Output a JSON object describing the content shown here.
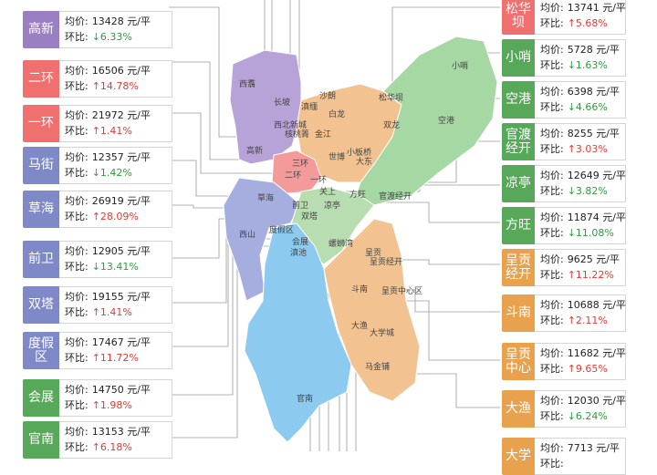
{
  "unit": "元/平",
  "price_label": "均价:",
  "change_label": "环比:",
  "colors": {
    "purple": "#9a80c2",
    "red": "#f07070",
    "blue_purple": "#7f89c8",
    "green": "#58a85a",
    "orange": "#e8a24e",
    "up": "#e53935",
    "down": "#2e9b3f"
  },
  "left_cards": [
    {
      "name": "高新",
      "price": "13428",
      "change": "6.33%",
      "dir": "down",
      "color": "purple"
    },
    {
      "name": "二环",
      "price": "16506",
      "change": "14.78%",
      "dir": "up",
      "color": "red"
    },
    {
      "name": "一环",
      "price": "21972",
      "change": "1.41%",
      "dir": "up",
      "color": "red"
    },
    {
      "name": "马街",
      "price": "12357",
      "change": "1.42%",
      "dir": "down",
      "color": "blue_purple"
    },
    {
      "name": "草海",
      "price": "26919",
      "change": "28.09%",
      "dir": "up",
      "color": "blue_purple"
    },
    {
      "name": "前卫",
      "price": "12905",
      "change": "13.41%",
      "dir": "down",
      "color": "blue_purple"
    },
    {
      "name": "双塔",
      "price": "19155",
      "change": "1.41%",
      "dir": "up",
      "color": "blue_purple"
    },
    {
      "name": "度假区",
      "price": "17467",
      "change": "11.72%",
      "dir": "up",
      "color": "blue_purple"
    },
    {
      "name": "会展",
      "price": "14750",
      "change": "1.98%",
      "dir": "up",
      "color": "green"
    },
    {
      "name": "官南",
      "price": "13153",
      "change": "6.18%",
      "dir": "up",
      "color": "green"
    }
  ],
  "right_cards": [
    {
      "name": "松华坝",
      "price": "13741",
      "change": "5.68%",
      "dir": "up",
      "color": "red"
    },
    {
      "name": "小哨",
      "price": "5728",
      "change": "1.63%",
      "dir": "down",
      "color": "green"
    },
    {
      "name": "空港",
      "price": "6398",
      "change": "4.66%",
      "dir": "down",
      "color": "green"
    },
    {
      "name": "官渡经开",
      "price": "8255",
      "change": "3.03%",
      "dir": "up",
      "color": "green"
    },
    {
      "name": "凉亭",
      "price": "12649",
      "change": "3.82%",
      "dir": "down",
      "color": "green"
    },
    {
      "name": "方旺",
      "price": "11874",
      "change": "11.08%",
      "dir": "down",
      "color": "green"
    },
    {
      "name": "呈贡经开",
      "price": "9625",
      "change": "11.22%",
      "dir": "up",
      "color": "orange"
    },
    {
      "name": "斗南",
      "price": "10688",
      "change": "2.11%",
      "dir": "up",
      "color": "orange"
    },
    {
      "name": "呈贡中心",
      "price": "11682",
      "change": "9.65%",
      "dir": "up",
      "color": "orange"
    },
    {
      "name": "大渔",
      "price": "12030",
      "change": "6.24%",
      "dir": "down",
      "color": "orange"
    },
    {
      "name": "大学",
      "price": "7713",
      "change": "",
      "dir": "up",
      "color": "orange"
    }
  ],
  "map_labels": [
    "西翥",
    "长坡",
    "西北新城",
    "核桃箐",
    "滇缅",
    "金江",
    "白龙",
    "沙朗",
    "松华坝",
    "双龙",
    "小哨",
    "空港",
    "小板桥",
    "高新",
    "三环",
    "二环",
    "一环",
    "世博",
    "大东",
    "官渡经开",
    "关上",
    "方旺",
    "凉亭",
    "草海",
    "前卫",
    "双塔",
    "滇池",
    "度假区",
    "会展",
    "螺蛳湾",
    "大渔",
    "呈贡",
    "呈贡经开",
    "斗南",
    "大学城",
    "马金铺",
    "呈贡中心区",
    "西山",
    "官南"
  ]
}
